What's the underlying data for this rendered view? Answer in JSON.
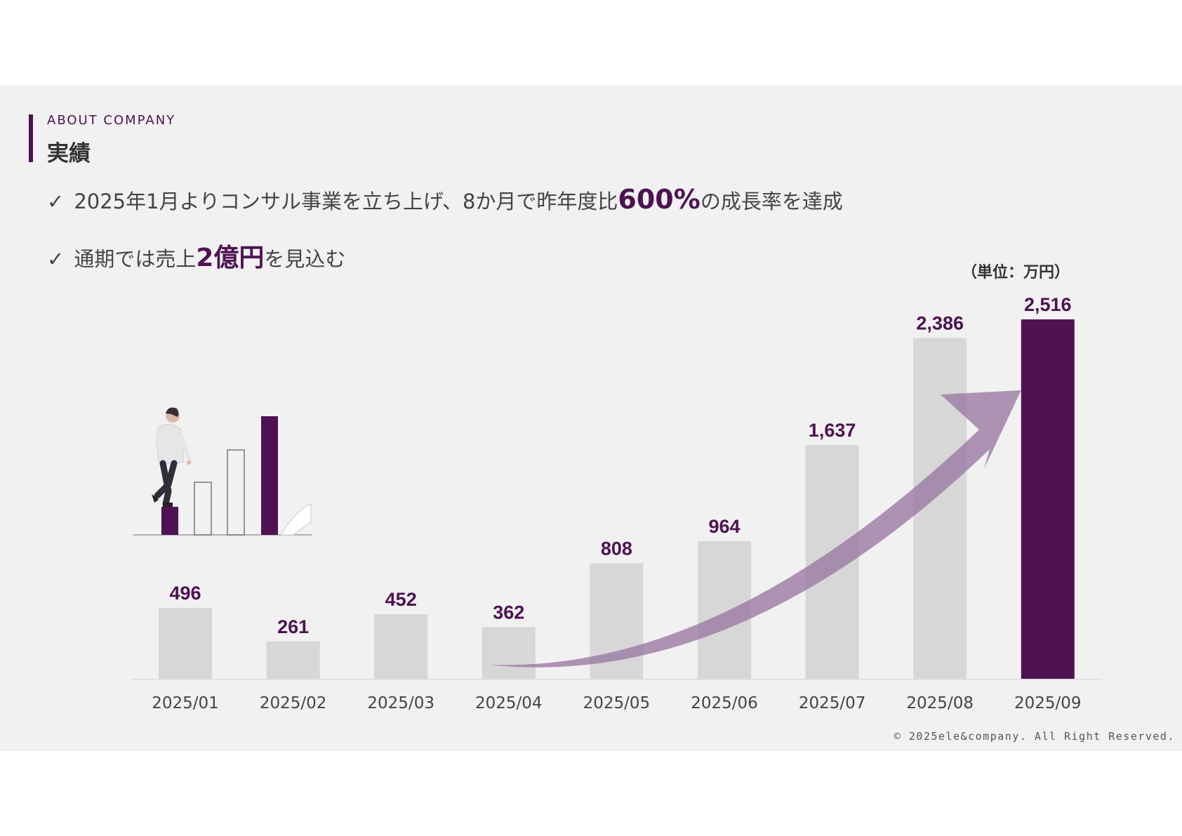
{
  "header": {
    "eyebrow": "ABOUT COMPANY",
    "title": "実績"
  },
  "bullets": [
    {
      "check": "✓",
      "before": "2025年1月よりコンサル事業を立ち上げ、8か月で昨年度比",
      "emphasis": "600%",
      "after": "の成長率を達成"
    },
    {
      "check": "✓",
      "before": "通期では売上",
      "emphasis": "2億円",
      "after": "を見込む"
    }
  ],
  "unit_label": "（単位：万円）",
  "copyright": "© 2025ele&company. All Right Reserved.",
  "colors": {
    "accent": "#4e1252",
    "bar_gray": "#d8d7d8",
    "arrow": "#9b7ba3",
    "background": "#f2f1f2"
  },
  "illustration": {
    "icon": "person-climbing-bars-icon"
  },
  "chart_data": {
    "type": "bar",
    "categories": [
      "2025/01",
      "2025/02",
      "2025/03",
      "2025/04",
      "2025/05",
      "2025/06",
      "2025/07",
      "2025/08",
      "2025/09"
    ],
    "values": [
      496,
      261,
      452,
      362,
      808,
      964,
      1637,
      2386,
      2516
    ],
    "value_labels": [
      "496",
      "261",
      "452",
      "362",
      "808",
      "964",
      "1,637",
      "2,386",
      "2,516"
    ],
    "highlight_index": 8,
    "ylim": [
      0,
      2516
    ],
    "grid": false,
    "legend": "none",
    "annotation": "growth-arrow"
  }
}
